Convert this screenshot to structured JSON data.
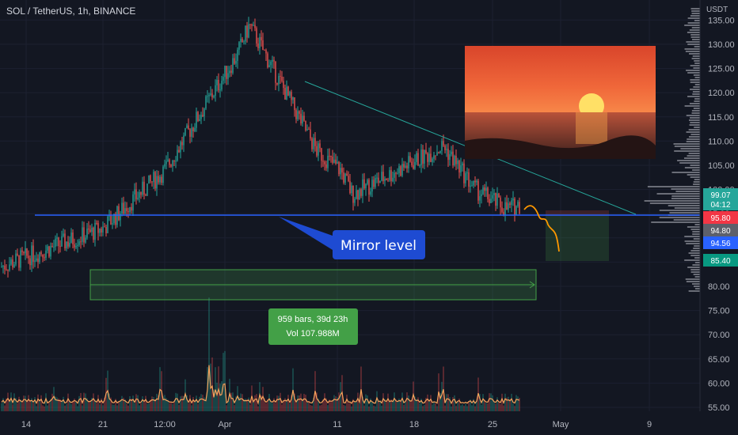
{
  "header": {
    "title": "SOL / TetherUS, 1h, BINANCE",
    "currency": "USDT"
  },
  "price_badges": {
    "current": {
      "price": "99.07",
      "countdown": "04:12",
      "color": "#26a69a"
    },
    "stop": {
      "price": "95.80",
      "color": "#f23645"
    },
    "level": {
      "price": "94.80",
      "color": "#5d606b"
    },
    "line": {
      "price": "94.56",
      "color": "#2962ff"
    },
    "target": {
      "price": "85.40",
      "color": "#089981"
    }
  },
  "annotations": {
    "mirror_label": "Mirror level",
    "range_line1": "959 bars, 39d 23h",
    "range_line2": "Vol 107.988M"
  },
  "colors": {
    "up": "#26a69a",
    "down": "#ef5350",
    "background": "#131722",
    "mirror_line": "#2962ff",
    "trend_line": "#26a69a",
    "projection": "#ff9800"
  },
  "chart_data": {
    "type": "candlestick",
    "title": "SOL / TetherUS, 1h, BINANCE",
    "y_axis": {
      "unit": "USDT",
      "ylim": [
        53,
        138
      ],
      "ticks": [
        55,
        60,
        65,
        70,
        75,
        80,
        85,
        90,
        95,
        100,
        105,
        110,
        115,
        120,
        125,
        130,
        135
      ]
    },
    "x_axis": {
      "tick_labels": [
        "14",
        "21",
        "12:00",
        "Apr",
        "11",
        "18",
        "25",
        "May",
        "9"
      ]
    },
    "price_path": {
      "x": [
        "14",
        "21",
        "12:00",
        "Apr",
        "6",
        "11",
        "15",
        "18",
        "20",
        "22",
        "25",
        "26"
      ],
      "close": [
        82,
        92,
        104,
        128,
        134,
        108,
        106,
        99,
        109,
        100,
        97,
        96
      ]
    },
    "mirror_level": 95.8,
    "projection_target": 88,
    "volume_overlay": "bars with moving average"
  }
}
